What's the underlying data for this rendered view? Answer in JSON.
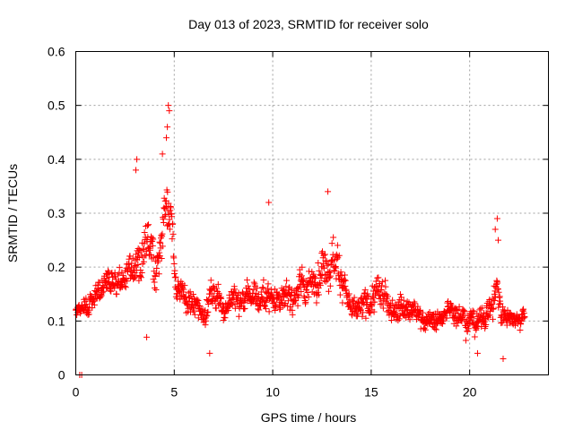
{
  "chart_data": {
    "type": "scatter",
    "title": "Day 013 of 2023, SRMTID for receiver solo",
    "xlabel": "GPS time / hours",
    "ylabel": "SRMTID / TECUs",
    "xlim": [
      0,
      24
    ],
    "ylim": [
      0,
      0.6
    ],
    "xticks": [
      0,
      5,
      10,
      15,
      20
    ],
    "xtick_labels": [
      "0",
      "5",
      "10",
      "15",
      "20"
    ],
    "yticks": [
      0,
      0.1,
      0.2,
      0.3,
      0.4,
      0.5,
      0.6
    ],
    "ytick_labels": [
      "0",
      "0.1",
      "0.2",
      "0.3",
      "0.4",
      "0.5",
      "0.6"
    ],
    "grid": true,
    "marker": "+",
    "color": "#ff0000",
    "series": [
      {
        "name": "SRMTID",
        "trend": [
          [
            0.0,
            0.12,
            0.025
          ],
          [
            0.5,
            0.13,
            0.03
          ],
          [
            1.0,
            0.15,
            0.035
          ],
          [
            1.5,
            0.17,
            0.04
          ],
          [
            2.0,
            0.17,
            0.045
          ],
          [
            2.5,
            0.19,
            0.05
          ],
          [
            3.0,
            0.21,
            0.06
          ],
          [
            3.5,
            0.22,
            0.07
          ],
          [
            3.8,
            0.26,
            0.08
          ],
          [
            4.0,
            0.2,
            0.06
          ],
          [
            4.3,
            0.24,
            0.07
          ],
          [
            4.6,
            0.32,
            0.08
          ],
          [
            4.8,
            0.34,
            0.1
          ],
          [
            5.0,
            0.18,
            0.05
          ],
          [
            5.5,
            0.14,
            0.04
          ],
          [
            6.0,
            0.13,
            0.04
          ],
          [
            6.5,
            0.12,
            0.04
          ],
          [
            7.0,
            0.15,
            0.05
          ],
          [
            7.5,
            0.13,
            0.04
          ],
          [
            8.0,
            0.14,
            0.04
          ],
          [
            8.5,
            0.13,
            0.04
          ],
          [
            9.0,
            0.15,
            0.05
          ],
          [
            9.5,
            0.14,
            0.05
          ],
          [
            10.0,
            0.15,
            0.05
          ],
          [
            10.5,
            0.14,
            0.04
          ],
          [
            11.0,
            0.15,
            0.05
          ],
          [
            11.5,
            0.16,
            0.05
          ],
          [
            12.0,
            0.17,
            0.05
          ],
          [
            12.5,
            0.2,
            0.06
          ],
          [
            13.0,
            0.22,
            0.07
          ],
          [
            13.5,
            0.19,
            0.06
          ],
          [
            14.0,
            0.11,
            0.04
          ],
          [
            14.5,
            0.12,
            0.04
          ],
          [
            15.0,
            0.14,
            0.05
          ],
          [
            15.5,
            0.15,
            0.05
          ],
          [
            16.0,
            0.13,
            0.04
          ],
          [
            16.5,
            0.13,
            0.04
          ],
          [
            17.0,
            0.12,
            0.04
          ],
          [
            17.5,
            0.11,
            0.03
          ],
          [
            18.0,
            0.1,
            0.03
          ],
          [
            18.5,
            0.1,
            0.03
          ],
          [
            19.0,
            0.12,
            0.04
          ],
          [
            19.5,
            0.12,
            0.04
          ],
          [
            20.0,
            0.1,
            0.035
          ],
          [
            20.5,
            0.1,
            0.035
          ],
          [
            21.0,
            0.12,
            0.04
          ],
          [
            21.4,
            0.16,
            0.06
          ],
          [
            21.6,
            0.11,
            0.04
          ],
          [
            22.0,
            0.11,
            0.035
          ],
          [
            22.5,
            0.11,
            0.035
          ],
          [
            22.8,
            0.11,
            0.035
          ]
        ],
        "x_range": [
          0.0,
          22.8
        ],
        "sample_step_hours": 0.0167,
        "notable_points": [
          {
            "x": 4.7,
            "y": 0.5
          },
          {
            "x": 4.75,
            "y": 0.49
          },
          {
            "x": 4.65,
            "y": 0.46
          },
          {
            "x": 4.6,
            "y": 0.44
          },
          {
            "x": 3.1,
            "y": 0.4
          },
          {
            "x": 3.05,
            "y": 0.38
          },
          {
            "x": 4.4,
            "y": 0.41
          },
          {
            "x": 12.8,
            "y": 0.34
          },
          {
            "x": 9.8,
            "y": 0.32
          },
          {
            "x": 21.4,
            "y": 0.29
          },
          {
            "x": 21.3,
            "y": 0.27
          },
          {
            "x": 21.45,
            "y": 0.25
          },
          {
            "x": 0.2,
            "y": 0.0
          },
          {
            "x": 0.3,
            "y": 0.0
          },
          {
            "x": 6.8,
            "y": 0.04
          },
          {
            "x": 21.7,
            "y": 0.03
          },
          {
            "x": 20.4,
            "y": 0.04
          },
          {
            "x": 3.6,
            "y": 0.07
          }
        ]
      }
    ]
  }
}
